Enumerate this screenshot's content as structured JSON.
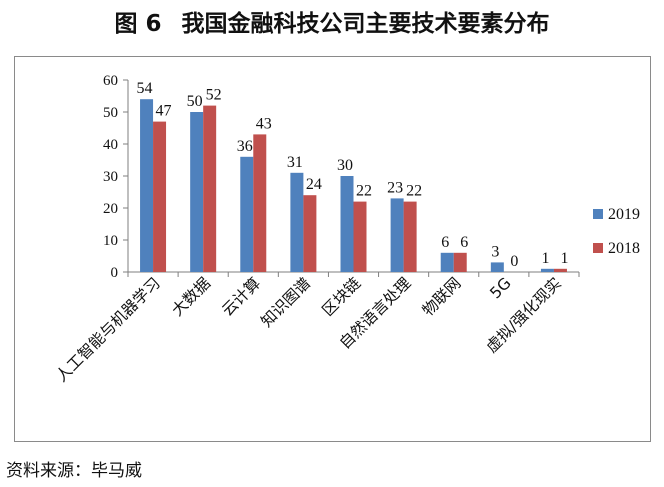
{
  "title": {
    "figure_num": "图 6",
    "text": "我国金融科技公司主要技术要素分布"
  },
  "source": "资料来源：毕马威",
  "chart_data": {
    "type": "bar",
    "categories": [
      "人工智能与机器学习",
      "大数据",
      "云计算",
      "知识图谱",
      "区块链",
      "自然语言处理",
      "物联网",
      "5G",
      "虚拟/强化现实"
    ],
    "series": [
      {
        "name": "2019",
        "values": [
          54,
          50,
          36,
          31,
          30,
          23,
          6,
          3,
          1
        ],
        "color": "#4f81bd"
      },
      {
        "name": "2018",
        "values": [
          47,
          52,
          43,
          24,
          22,
          22,
          6,
          0,
          1
        ],
        "color": "#c0504d"
      }
    ],
    "ylim": [
      0,
      60
    ],
    "yticks": [
      "0",
      "10",
      "20",
      "30",
      "40",
      "50",
      "60"
    ],
    "legend": "right",
    "grid": false
  }
}
